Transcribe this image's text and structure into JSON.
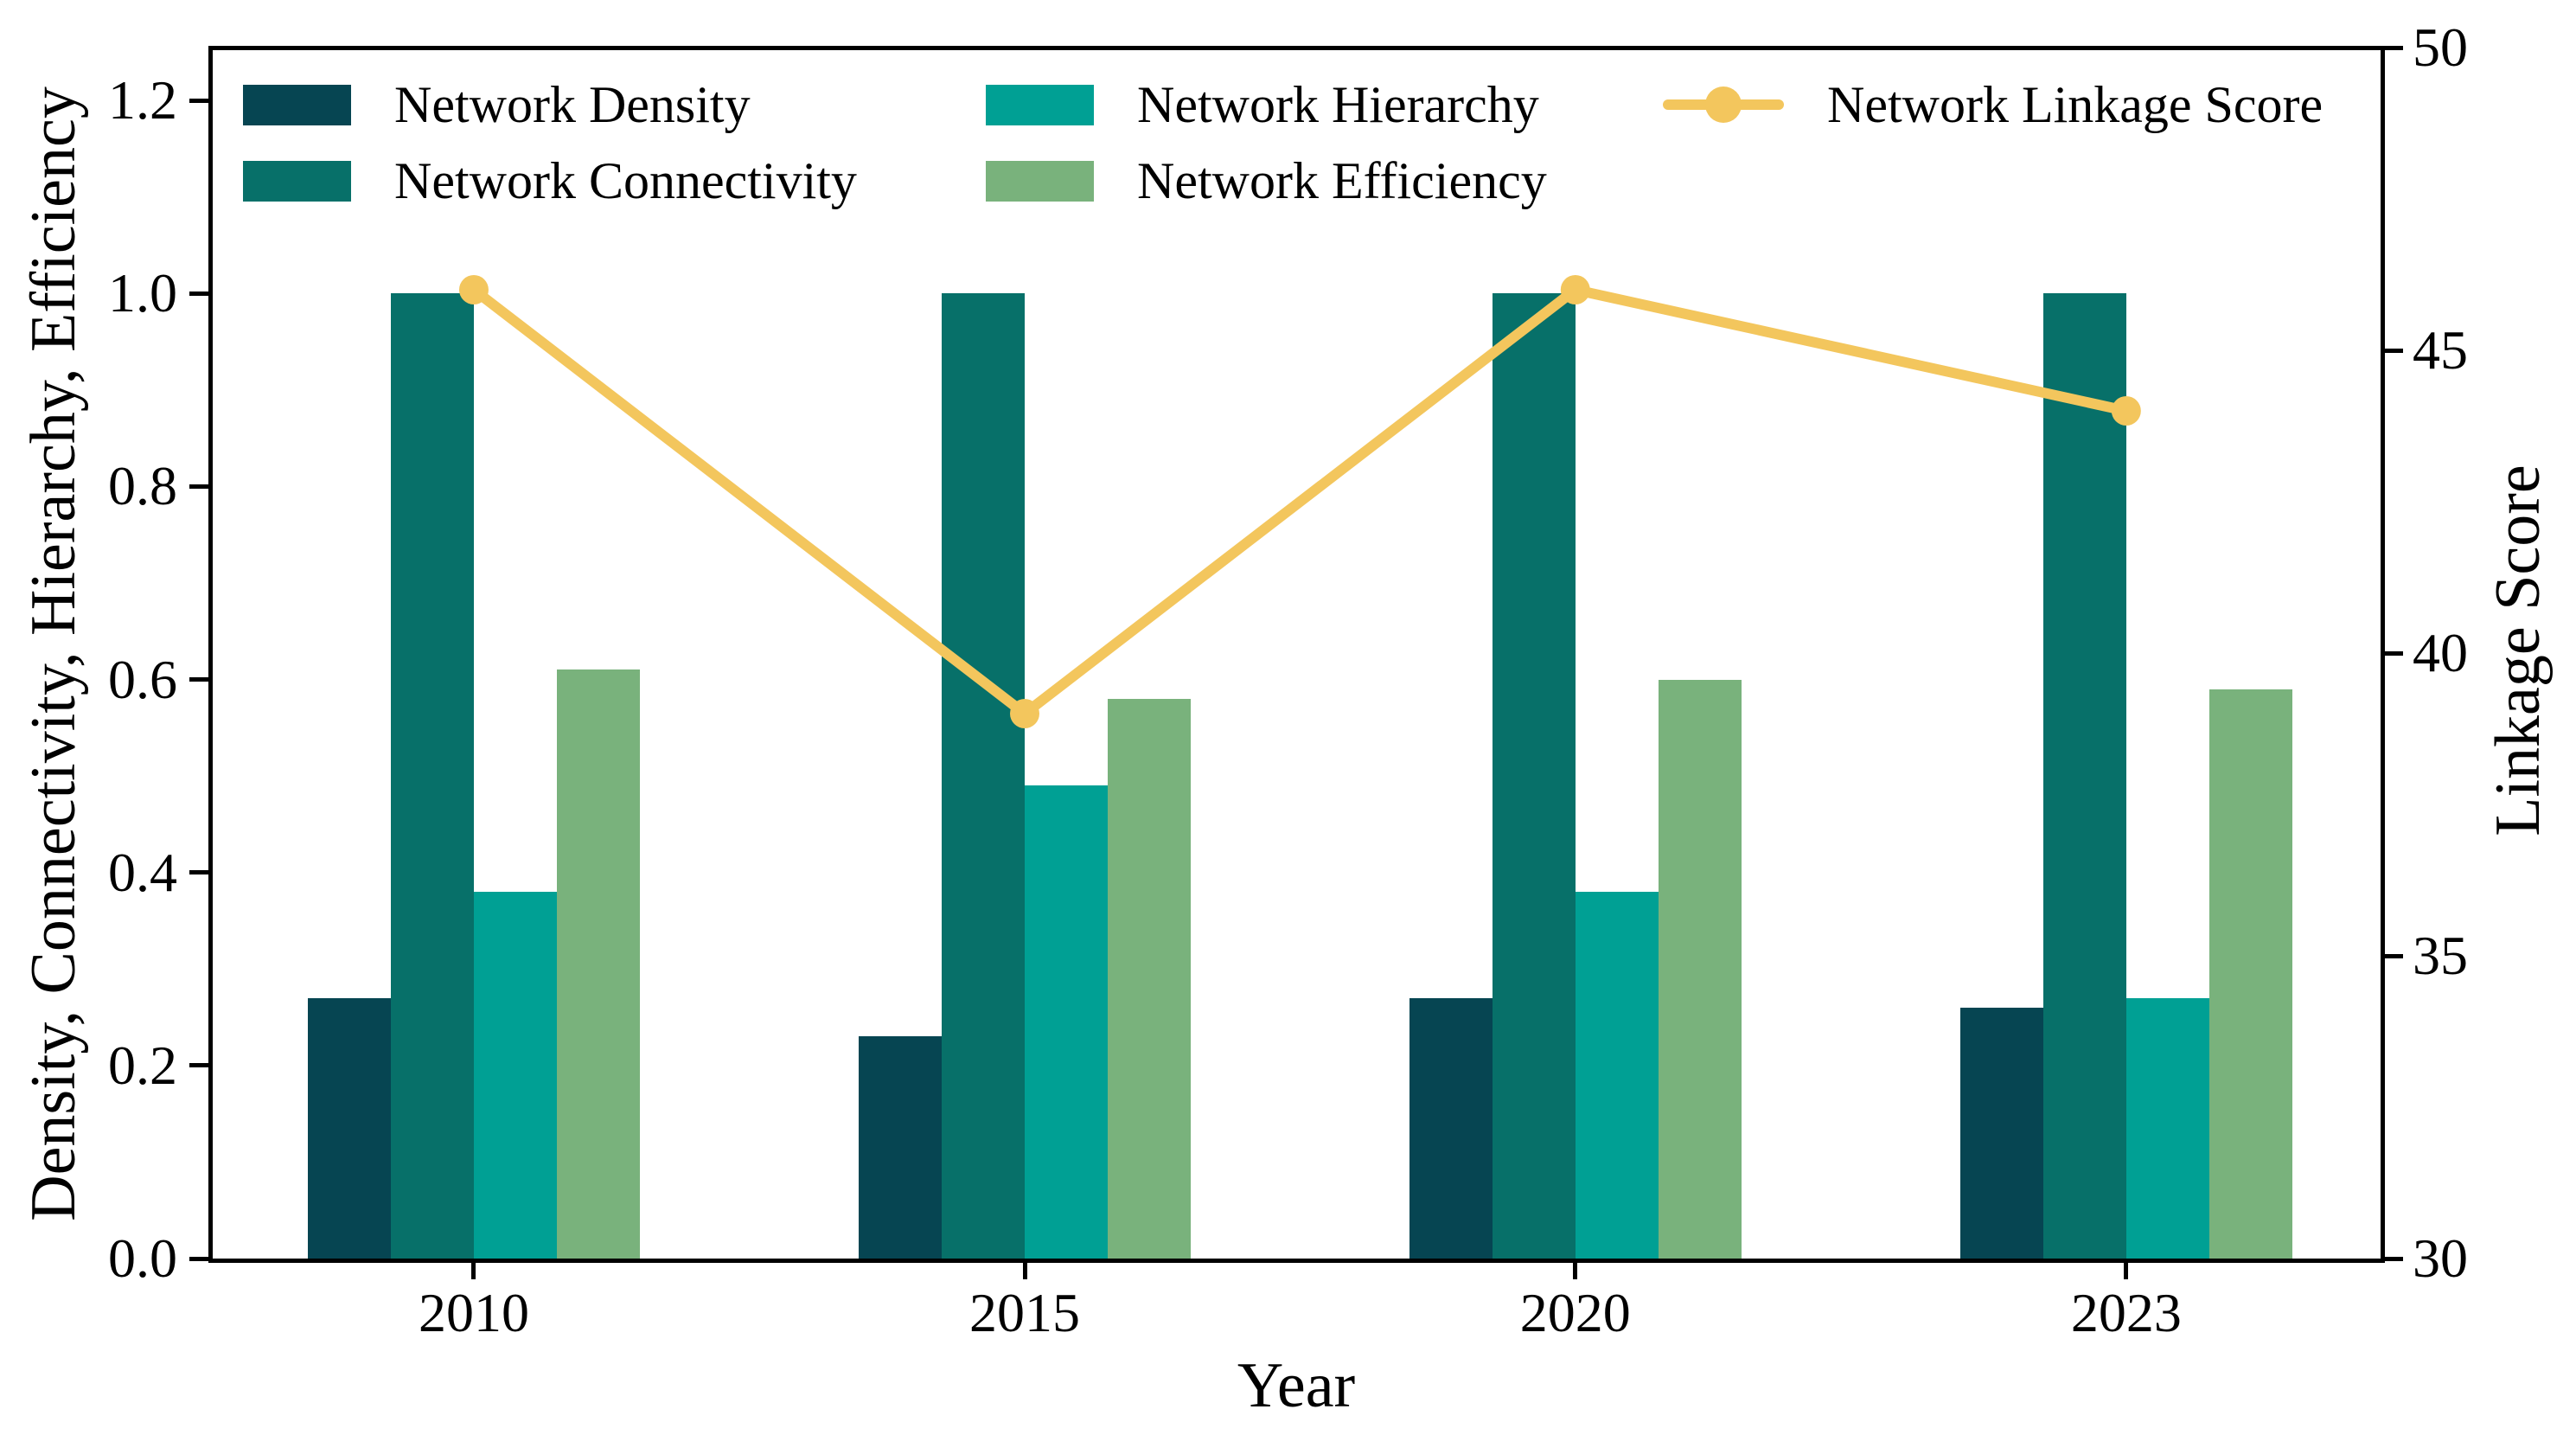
{
  "figure": {
    "background": "#ffffff",
    "frame_color": "#000000",
    "text_color": "#000000"
  },
  "chart_data": {
    "type": "bar",
    "categories": [
      "2010",
      "2015",
      "2020",
      "2023"
    ],
    "series": [
      {
        "name": "Network Density",
        "axis": "left",
        "color": "#064552",
        "values": [
          0.27,
          0.23,
          0.27,
          0.26
        ]
      },
      {
        "name": "Network Connectivity",
        "axis": "left",
        "color": "#077069",
        "values": [
          1.0,
          1.0,
          1.0,
          1.0
        ]
      },
      {
        "name": "Network Hierarchy",
        "axis": "left",
        "color": "#00a094",
        "values": [
          0.38,
          0.49,
          0.38,
          0.27
        ]
      },
      {
        "name": "Network Efficiency",
        "axis": "left",
        "color": "#79b27c",
        "values": [
          0.61,
          0.58,
          0.6,
          0.59
        ]
      }
    ],
    "line_series": {
      "name": "Network Linkage Score",
      "axis": "right",
      "color": "#f3c65d",
      "values": [
        46,
        39,
        46,
        44
      ]
    },
    "xlabel": "Year",
    "ylabel_left": "Density, Connectivity, Hierarchy, Efficiency",
    "ylabel_right": "Linkage Score",
    "yticks_left": [
      0.0,
      0.2,
      0.4,
      0.6,
      0.8,
      1.0,
      1.2
    ],
    "ylim_left": [
      0,
      1.2547
    ],
    "yticks_right": [
      30,
      35,
      40,
      45,
      50
    ],
    "ylim_right": [
      30,
      50
    ],
    "grid": false,
    "legend_position": "top-inside"
  }
}
